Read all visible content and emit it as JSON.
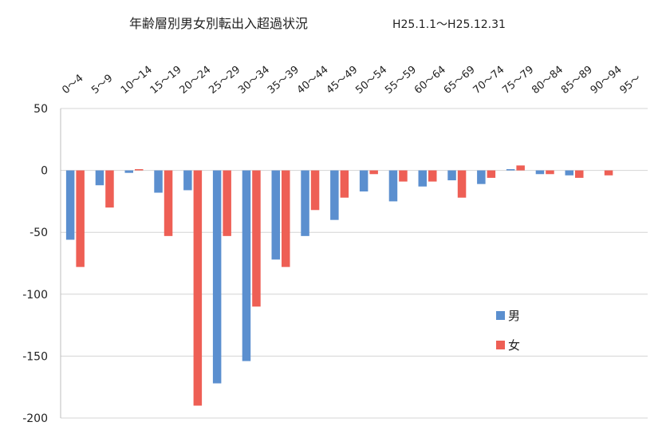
{
  "chart_data": {
    "type": "bar",
    "title": "年齢層別男女別転出入超過状況",
    "period": "H25.1.1〜H25.12.31",
    "categories": [
      "0〜4",
      "5〜9",
      "10〜14",
      "15〜19",
      "20〜24",
      "25〜29",
      "30〜34",
      "35〜39",
      "40〜44",
      "45〜49",
      "50〜54",
      "55〜59",
      "60〜64",
      "65〜69",
      "70〜74",
      "75〜79",
      "80〜84",
      "85〜89",
      "90〜94",
      "95〜"
    ],
    "series": [
      {
        "name": "男",
        "color": "#5b8fcf",
        "values": [
          -56,
          -12,
          -2,
          -18,
          -16,
          -172,
          -154,
          -72,
          -53,
          -40,
          -17,
          -25,
          -13,
          -8,
          -11,
          1,
          -3,
          -4,
          0,
          0
        ]
      },
      {
        "name": "女",
        "color": "#ee5f55",
        "values": [
          -78,
          -30,
          1,
          -53,
          -190,
          -53,
          -110,
          -78,
          -32,
          -22,
          -3,
          -9,
          -9,
          -22,
          -6,
          4,
          -3,
          -6,
          -4,
          0
        ]
      }
    ],
    "ylim": [
      -200,
      50
    ],
    "yticks": [
      50,
      0,
      -50,
      -100,
      -150,
      -200
    ],
    "xlabel": "",
    "ylabel": "",
    "grid": true,
    "legend_position": "right-middle"
  }
}
